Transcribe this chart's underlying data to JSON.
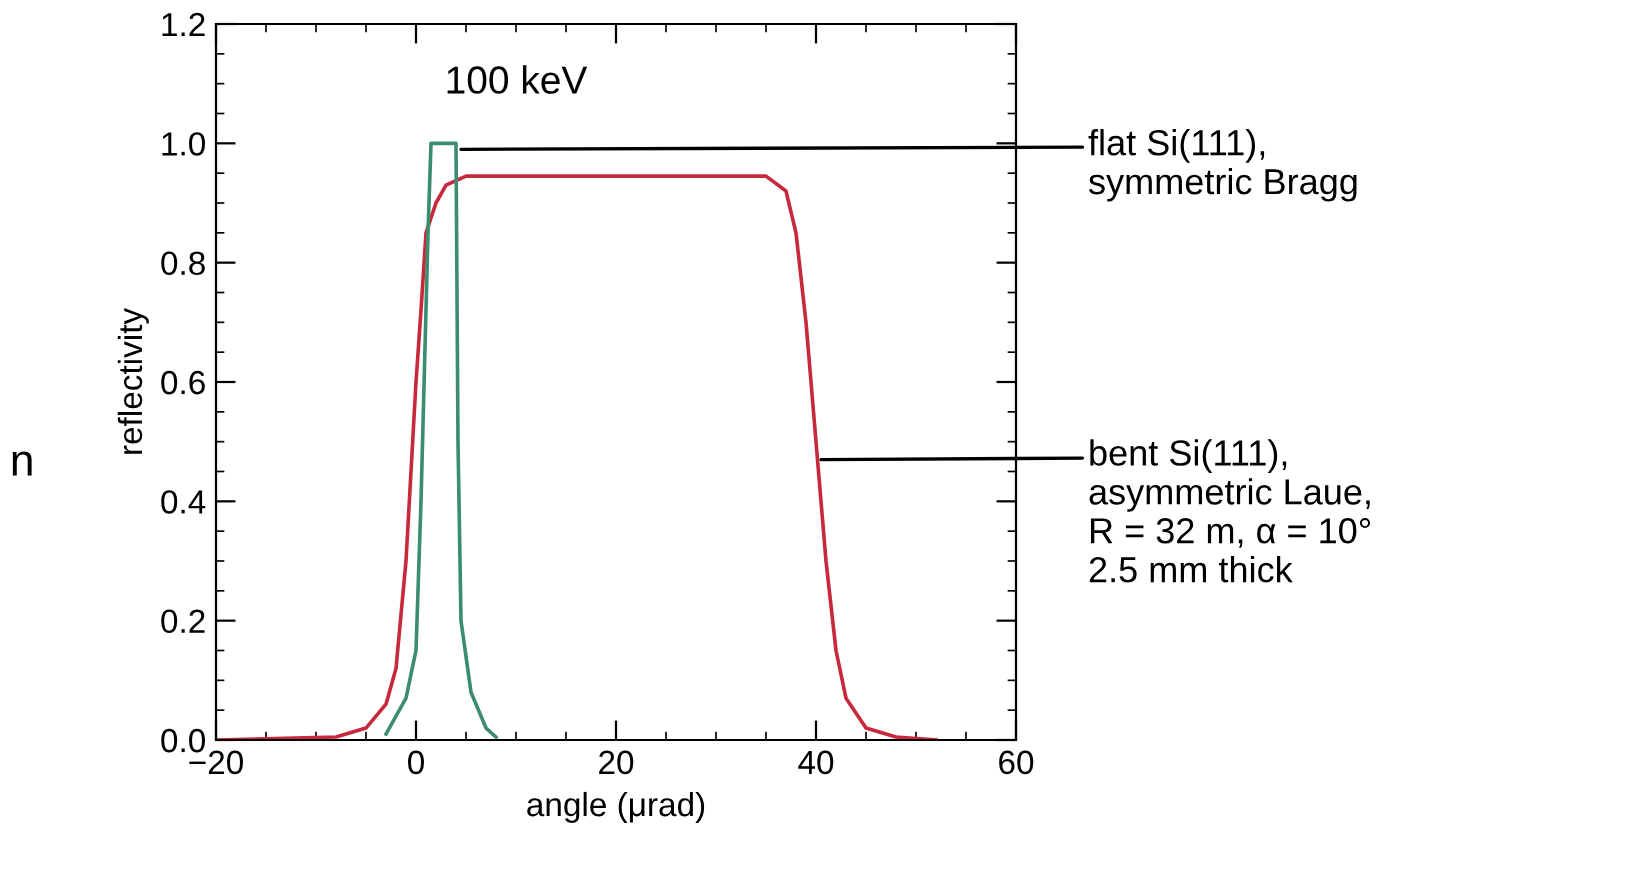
{
  "chart_data": {
    "type": "line",
    "xlabel": "angle (μrad)",
    "ylabel": "reflectivity",
    "xlim": [
      -20,
      60
    ],
    "ylim": [
      0,
      1.2
    ],
    "xticks": [
      {
        "value": -20,
        "label": "−20"
      },
      0,
      20,
      40,
      60
    ],
    "yticks": [
      {
        "value": 0,
        "label": "0.0"
      },
      0.2,
      0.4,
      0.6,
      0.8,
      {
        "value": 1,
        "label": "1.0"
      },
      1.2
    ],
    "grid": false,
    "marker": "none",
    "line_style": "solid",
    "series": [
      {
        "color": "#c8283c",
        "x": [
          -20,
          -8,
          -5,
          -3,
          -2,
          -1,
          0,
          0.5,
          1,
          2,
          3,
          5,
          35,
          37,
          38,
          39,
          40,
          41,
          42,
          43,
          45,
          48,
          52
        ],
        "values": [
          0.0,
          0.005,
          0.02,
          0.06,
          0.12,
          0.3,
          0.6,
          0.72,
          0.85,
          0.9,
          0.93,
          0.945,
          0.945,
          0.92,
          0.85,
          0.7,
          0.5,
          0.3,
          0.15,
          0.07,
          0.02,
          0.005,
          0.0
        ]
      },
      {
        "color": "#3c8c6e",
        "x": [
          -3,
          -1,
          0,
          0.5,
          1.2,
          1.5,
          4,
          4.2,
          4.5,
          5.5,
          7,
          8
        ],
        "values": [
          0.01,
          0.07,
          0.15,
          0.4,
          0.85,
          1.0,
          1.0,
          0.5,
          0.2,
          0.08,
          0.02,
          0.005
        ]
      }
    ],
    "annotations": [
      "100 keV",
      {
        "text": "flat Si(111),\nsymmetric Bragg",
        "x": 4.5,
        "y": 0.99
      },
      {
        "text": "bent Si(111),\nasymmetric Laue,\nR = 32 m, α = 10°\n2.5 mm thick",
        "x": 40.5,
        "y": 0.47
      },
      "n"
    ]
  }
}
